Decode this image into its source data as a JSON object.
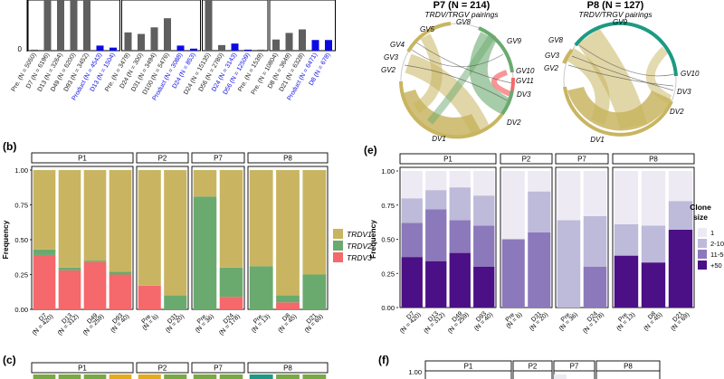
{
  "colors": {
    "trdv1": "#C9B561",
    "trdv2": "#6BAA6F",
    "trdv3": "#F5686B",
    "c1": "#EEEAF4",
    "c2": "#BEBADA",
    "c3": "#8C79BB",
    "c4": "#4B0F86",
    "grey": "#5F5F5F",
    "blue": "#0A0AE6"
  },
  "panel_labels": {
    "b": "(b)",
    "c": "(c)",
    "e": "(e)",
    "f": "(f)"
  },
  "chart_data": [
    {
      "id": "a_top",
      "type": "bar",
      "title": "",
      "note": "Bars are cropped at the top edge of the image; visible heights estimated relative to baseline (0 tick shown).",
      "ytick": "0",
      "groups": [
        {
          "categories": [
            "Pre. (N = 5050)",
            "D7 (N = 6196)",
            "D13 (N = 3264)",
            "D49 (N = 6200)",
            "D93 (N = 3452)",
            "Product (N = 4543)",
            "D13 (N = 1504)"
          ],
          "values": [
            2,
            100,
            100,
            100,
            100,
            10,
            6
          ],
          "highlight": [
            false,
            false,
            false,
            false,
            false,
            true,
            true
          ]
        },
        {
          "categories": [
            "Pre. (N = 3479)",
            "D24 (N = 300)",
            "D31 (N = 3494)",
            "D100 (N = 5476)",
            "Product (N = 3088)",
            "D24 (N = 853)"
          ],
          "values": [
            36,
            33,
            46,
            64,
            10,
            4
          ],
          "highlight": [
            false,
            false,
            false,
            false,
            true,
            true
          ]
        },
        {
          "categories": [
            "D24 (N = 15135)",
            "D56 (N = 2780)",
            "D24 (N = 3143)",
            "D56 (N = 12509)",
            "Pre. (N = 1539)"
          ],
          "values": [
            100,
            11,
            14,
            2,
            2
          ],
          "highlight": [
            false,
            false,
            true,
            true,
            false
          ]
        },
        {
          "categories": [
            "Pre. (N = 10804)",
            "D8 (N = 3649)",
            "D21 (N = 6328)",
            "Product (N = 6471)",
            "D8 (N = 678)"
          ],
          "values": [
            22,
            35,
            42,
            21,
            21
          ],
          "highlight": [
            false,
            false,
            false,
            true,
            true
          ]
        }
      ]
    },
    {
      "id": "b",
      "type": "bar",
      "stacked": true,
      "ylabel": "Frequency",
      "ylim": [
        0,
        1
      ],
      "yticks": [
        "0.00",
        "0.25",
        "0.50",
        "0.75",
        "1.00"
      ],
      "legend": [
        "TRDV1",
        "TRDV2",
        "TRDV3"
      ],
      "facets": [
        {
          "label": "P1",
          "bars": [
            {
              "name": "D7",
              "n": "(N = 420)",
              "trdv3": 0.39,
              "trdv2": 0.04,
              "trdv1": 0.57
            },
            {
              "name": "D13",
              "n": "(N = 312)",
              "trdv3": 0.28,
              "trdv2": 0.02,
              "trdv1": 0.7
            },
            {
              "name": "D49",
              "n": "(N = 259)",
              "trdv3": 0.34,
              "trdv2": 0.01,
              "trdv1": 0.65
            },
            {
              "name": "D93",
              "n": "(N = 40)",
              "trdv3": 0.25,
              "trdv2": 0.02,
              "trdv1": 0.73
            }
          ]
        },
        {
          "label": "P2",
          "bars": [
            {
              "name": "Pre.",
              "n": "(N = 6)",
              "trdv3": 0.17,
              "trdv2": 0.0,
              "trdv1": 0.83
            },
            {
              "name": "D31",
              "n": "(N = 20)",
              "trdv3": 0.0,
              "trdv2": 0.1,
              "trdv1": 0.9
            }
          ]
        },
        {
          "label": "P7",
          "bars": [
            {
              "name": "Pre.",
              "n": "(N = 36)",
              "trdv3": 0.0,
              "trdv2": 0.81,
              "trdv1": 0.19
            },
            {
              "name": "D24",
              "n": "(N = 178)",
              "trdv3": 0.09,
              "trdv2": 0.21,
              "trdv1": 0.7
            }
          ]
        },
        {
          "label": "P8",
          "bars": [
            {
              "name": "Pre.",
              "n": "(N = 13)",
              "trdv3": 0.0,
              "trdv2": 0.31,
              "trdv1": 0.69
            },
            {
              "name": "D8",
              "n": "(N = 45)",
              "trdv3": 0.05,
              "trdv2": 0.05,
              "trdv1": 0.9
            },
            {
              "name": "D21",
              "n": "(N = 69)",
              "trdv3": 0.0,
              "trdv2": 0.25,
              "trdv1": 0.75
            }
          ]
        }
      ]
    },
    {
      "id": "e",
      "type": "bar",
      "stacked": true,
      "ylabel": "Frequency",
      "ylim": [
        0,
        1
      ],
      "yticks": [
        "0.00",
        "0.25",
        "0.50",
        "0.75",
        "1.00"
      ],
      "legend_title": [
        "Clone",
        "size"
      ],
      "legend": [
        "1",
        "2-10",
        "11-50",
        "+50"
      ],
      "facets": [
        {
          "label": "P1",
          "bars": [
            {
              "name": "D7",
              "n": "(N = 420)",
              "s50": 0.37,
              "s11": 0.25,
              "s2": 0.18,
              "s1": 0.2
            },
            {
              "name": "D13",
              "n": "(N = 312)",
              "s50": 0.34,
              "s11": 0.38,
              "s2": 0.14,
              "s1": 0.14
            },
            {
              "name": "D49",
              "n": "(N = 259)",
              "s50": 0.4,
              "s11": 0.24,
              "s2": 0.24,
              "s1": 0.12
            },
            {
              "name": "D93",
              "n": "(N = 40)",
              "s50": 0.3,
              "s11": 0.3,
              "s2": 0.22,
              "s1": 0.18
            }
          ]
        },
        {
          "label": "P2",
          "bars": [
            {
              "name": "Pre.",
              "n": "(N = 6)",
              "s50": 0.0,
              "s11": 0.5,
              "s2": 0.0,
              "s1": 0.5
            },
            {
              "name": "D31",
              "n": "(N = 20)",
              "s50": 0.0,
              "s11": 0.55,
              "s2": 0.3,
              "s1": 0.15
            }
          ]
        },
        {
          "label": "P7",
          "bars": [
            {
              "name": "Pre.",
              "n": "(N = 36)",
              "s50": 0.0,
              "s11": 0.0,
              "s2": 0.64,
              "s1": 0.36
            },
            {
              "name": "D24",
              "n": "(N = 178)",
              "s50": 0.0,
              "s11": 0.3,
              "s2": 0.37,
              "s1": 0.33
            }
          ]
        },
        {
          "label": "P8",
          "bars": [
            {
              "name": "Pre.",
              "n": "(N = 13)",
              "s50": 0.38,
              "s11": 0.0,
              "s2": 0.23,
              "s1": 0.39
            },
            {
              "name": "D8",
              "n": "(N = 45)",
              "s50": 0.33,
              "s11": 0.0,
              "s2": 0.27,
              "s1": 0.4
            },
            {
              "name": "D21",
              "n": "(N = 69)",
              "s50": 0.57,
              "s11": 0.0,
              "s2": 0.21,
              "s1": 0.22
            }
          ]
        }
      ]
    },
    {
      "id": "c_partial",
      "type": "bar",
      "note": "Panel (c) visible only as facet strips and tops of bars (cropped).",
      "facets": [
        "P1",
        "P2",
        "P7",
        "P8"
      ]
    },
    {
      "id": "f_partial",
      "type": "bar",
      "note": "Panel (f) visible only as facet strips and top tick (cropped).",
      "ytick_top": "1.00",
      "facets": [
        "P1",
        "P2",
        "P7",
        "P8"
      ]
    }
  ],
  "chord": {
    "p7": {
      "title": "P7 (N = 214)",
      "subtitle": "TRDV/TRGV pairings",
      "labels": [
        "GV8",
        "GV5",
        "GV4",
        "GV3",
        "GV2",
        "GV9",
        "GV10",
        "GV11",
        "DV3",
        "DV2",
        "DV1"
      ]
    },
    "p8": {
      "title": "P8 (N = 127)",
      "subtitle": "TRDV/TRGV pairings",
      "labels": [
        "GV9",
        "GV8",
        "GV3",
        "GV2",
        "GV10",
        "DV3",
        "DV2",
        "DV1"
      ]
    }
  }
}
